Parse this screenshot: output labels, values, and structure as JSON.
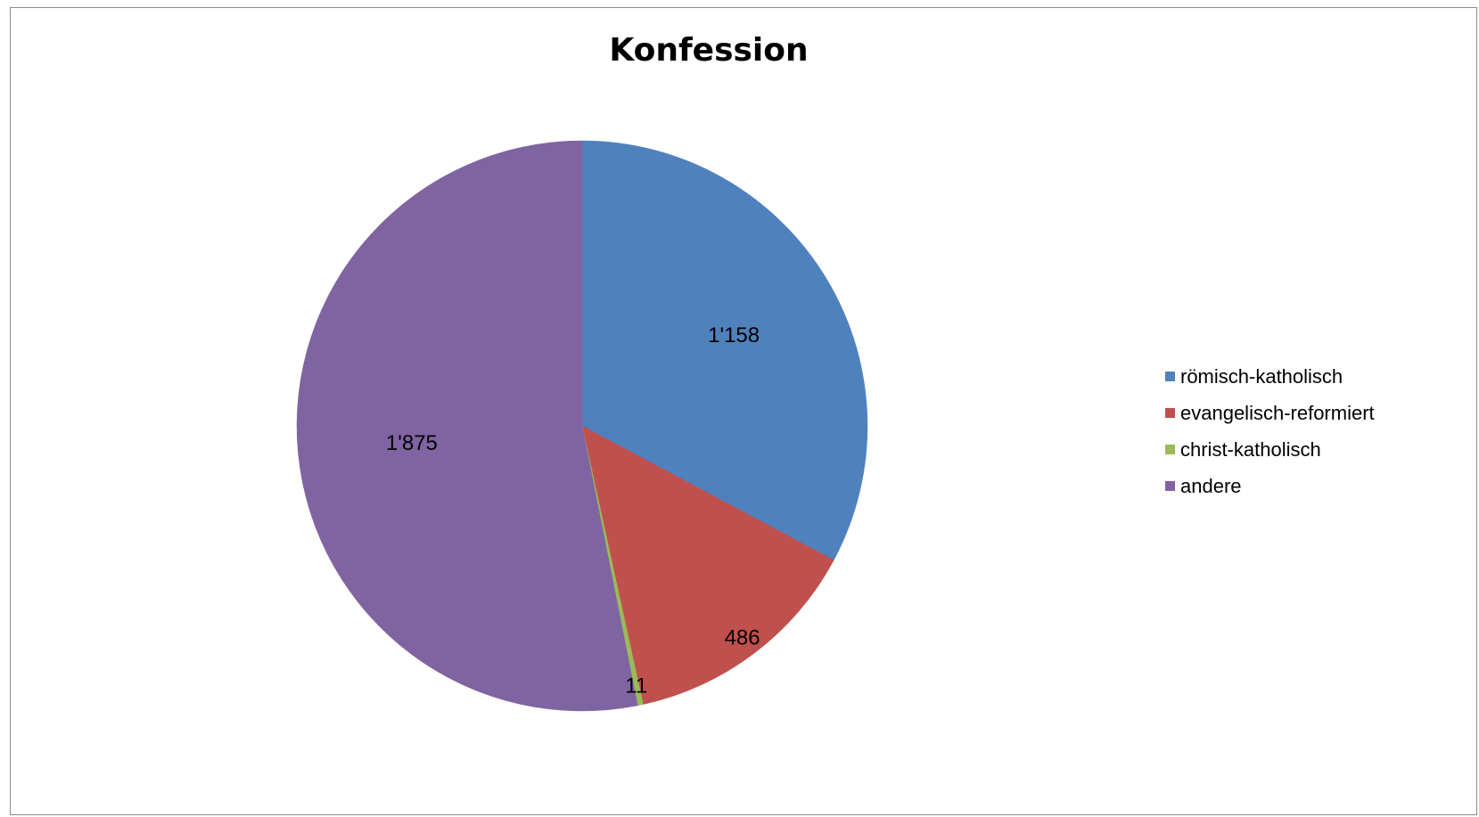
{
  "chart_data": {
    "type": "pie",
    "title": "Konfession",
    "categories": [
      "römisch-katholisch",
      "evangelisch-reformiert",
      "christ-katholisch",
      "andere"
    ],
    "values": [
      1158,
      486,
      11,
      1875
    ],
    "value_labels": [
      "1'158",
      "486",
      "11",
      "1'875"
    ],
    "colors": [
      "#4F81BD",
      "#C0504D",
      "#9BBB59",
      "#8064A2"
    ],
    "legend_position": "right",
    "start_angle": "12 o'clock, clockwise"
  }
}
